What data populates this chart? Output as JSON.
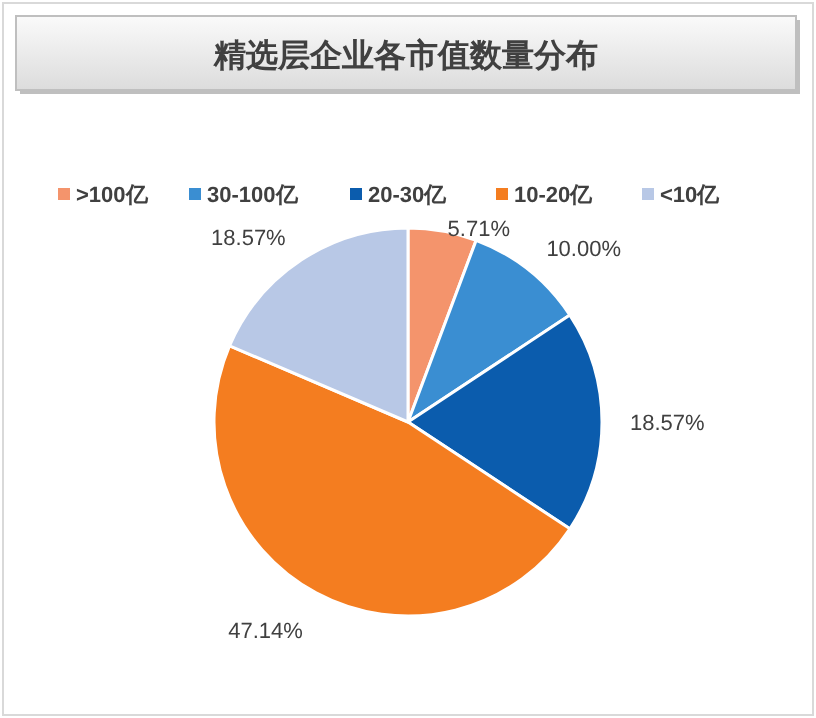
{
  "chart_data": {
    "type": "pie",
    "title": "精选层企业各市值数量分布",
    "categories": [
      ">100亿",
      "30-100亿",
      "20-30亿",
      "10-20亿",
      "<10亿"
    ],
    "values": [
      5.71,
      10.0,
      18.57,
      47.14,
      18.57
    ],
    "value_labels": [
      "5.71%",
      "10.00%",
      "18.57%",
      "47.14%",
      "18.57%"
    ],
    "colors": [
      "#f4946c",
      "#3a8ed2",
      "#0b5cad",
      "#f47d20",
      "#b8c8e6"
    ],
    "legend": "top"
  }
}
